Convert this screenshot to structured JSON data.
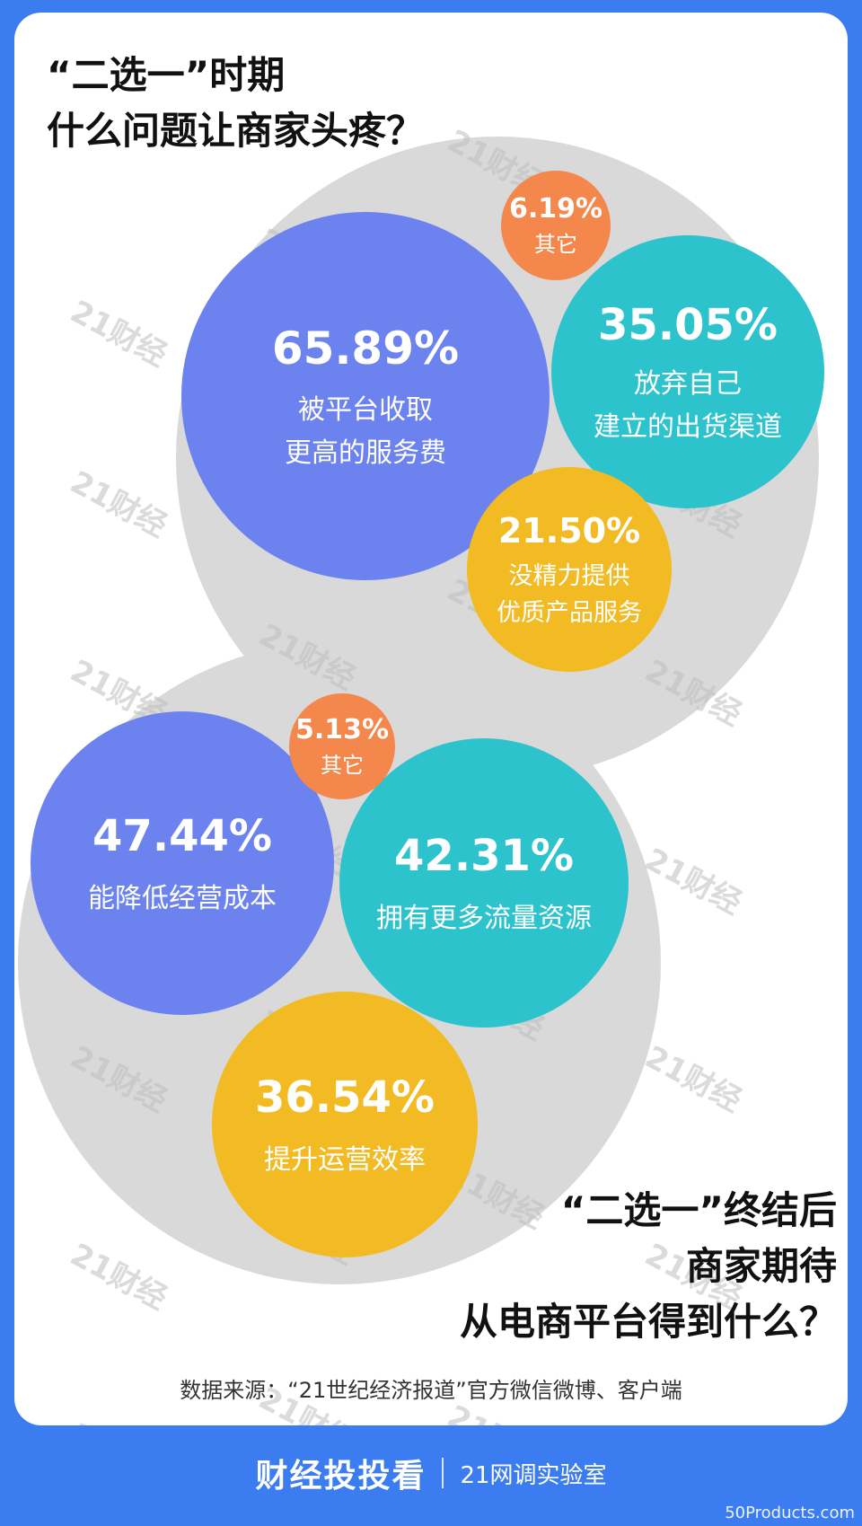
{
  "title_top": {
    "line1": "“二选一”时期",
    "line2": "什么问题让商家头疼？"
  },
  "title_bottom": {
    "line1": "“二选一”终结后",
    "line2": "商家期待",
    "line3": "从电商平台得到什么？"
  },
  "watermark": "21财经",
  "source": "数据来源：“21世纪经济报道”官方微信微博、客户端",
  "footer": {
    "brand": "财经投投看",
    "lab": "21网调实验室",
    "corner": "50Products.com"
  },
  "colors": {
    "blue": "#6b82ef",
    "teal": "#2dc3cc",
    "yellow": "#f2bb24",
    "orange": "#f4874b",
    "grey": "#d9d9d9",
    "bg": "#3b7cf0"
  },
  "chart_data": [
    {
      "type": "bubble",
      "title": "“二选一”时期 什么问题让商家头疼？",
      "items": [
        {
          "value": 65.89,
          "pct": "65.89%",
          "label": [
            "被平台收取",
            "更高的服务费"
          ],
          "color": "#6b82ef"
        },
        {
          "value": 35.05,
          "pct": "35.05%",
          "label": [
            "放弃自己",
            "建立的出货渠道"
          ],
          "color": "#2dc3cc"
        },
        {
          "value": 21.5,
          "pct": "21.50%",
          "label": [
            "没精力提供",
            "优质产品服务"
          ],
          "color": "#f2bb24"
        },
        {
          "value": 6.19,
          "pct": "6.19%",
          "label": [
            "其它"
          ],
          "color": "#f4874b"
        }
      ]
    },
    {
      "type": "bubble",
      "title": "“二选一”终结后 商家期待 从电商平台得到什么？",
      "items": [
        {
          "value": 47.44,
          "pct": "47.44%",
          "label": [
            "能降低经营成本"
          ],
          "color": "#6b82ef"
        },
        {
          "value": 42.31,
          "pct": "42.31%",
          "label": [
            "拥有更多流量资源"
          ],
          "color": "#2dc3cc"
        },
        {
          "value": 36.54,
          "pct": "36.54%",
          "label": [
            "提升运营效率"
          ],
          "color": "#f2bb24"
        },
        {
          "value": 5.13,
          "pct": "5.13%",
          "label": [
            "其它"
          ],
          "color": "#f4874b"
        }
      ]
    }
  ]
}
